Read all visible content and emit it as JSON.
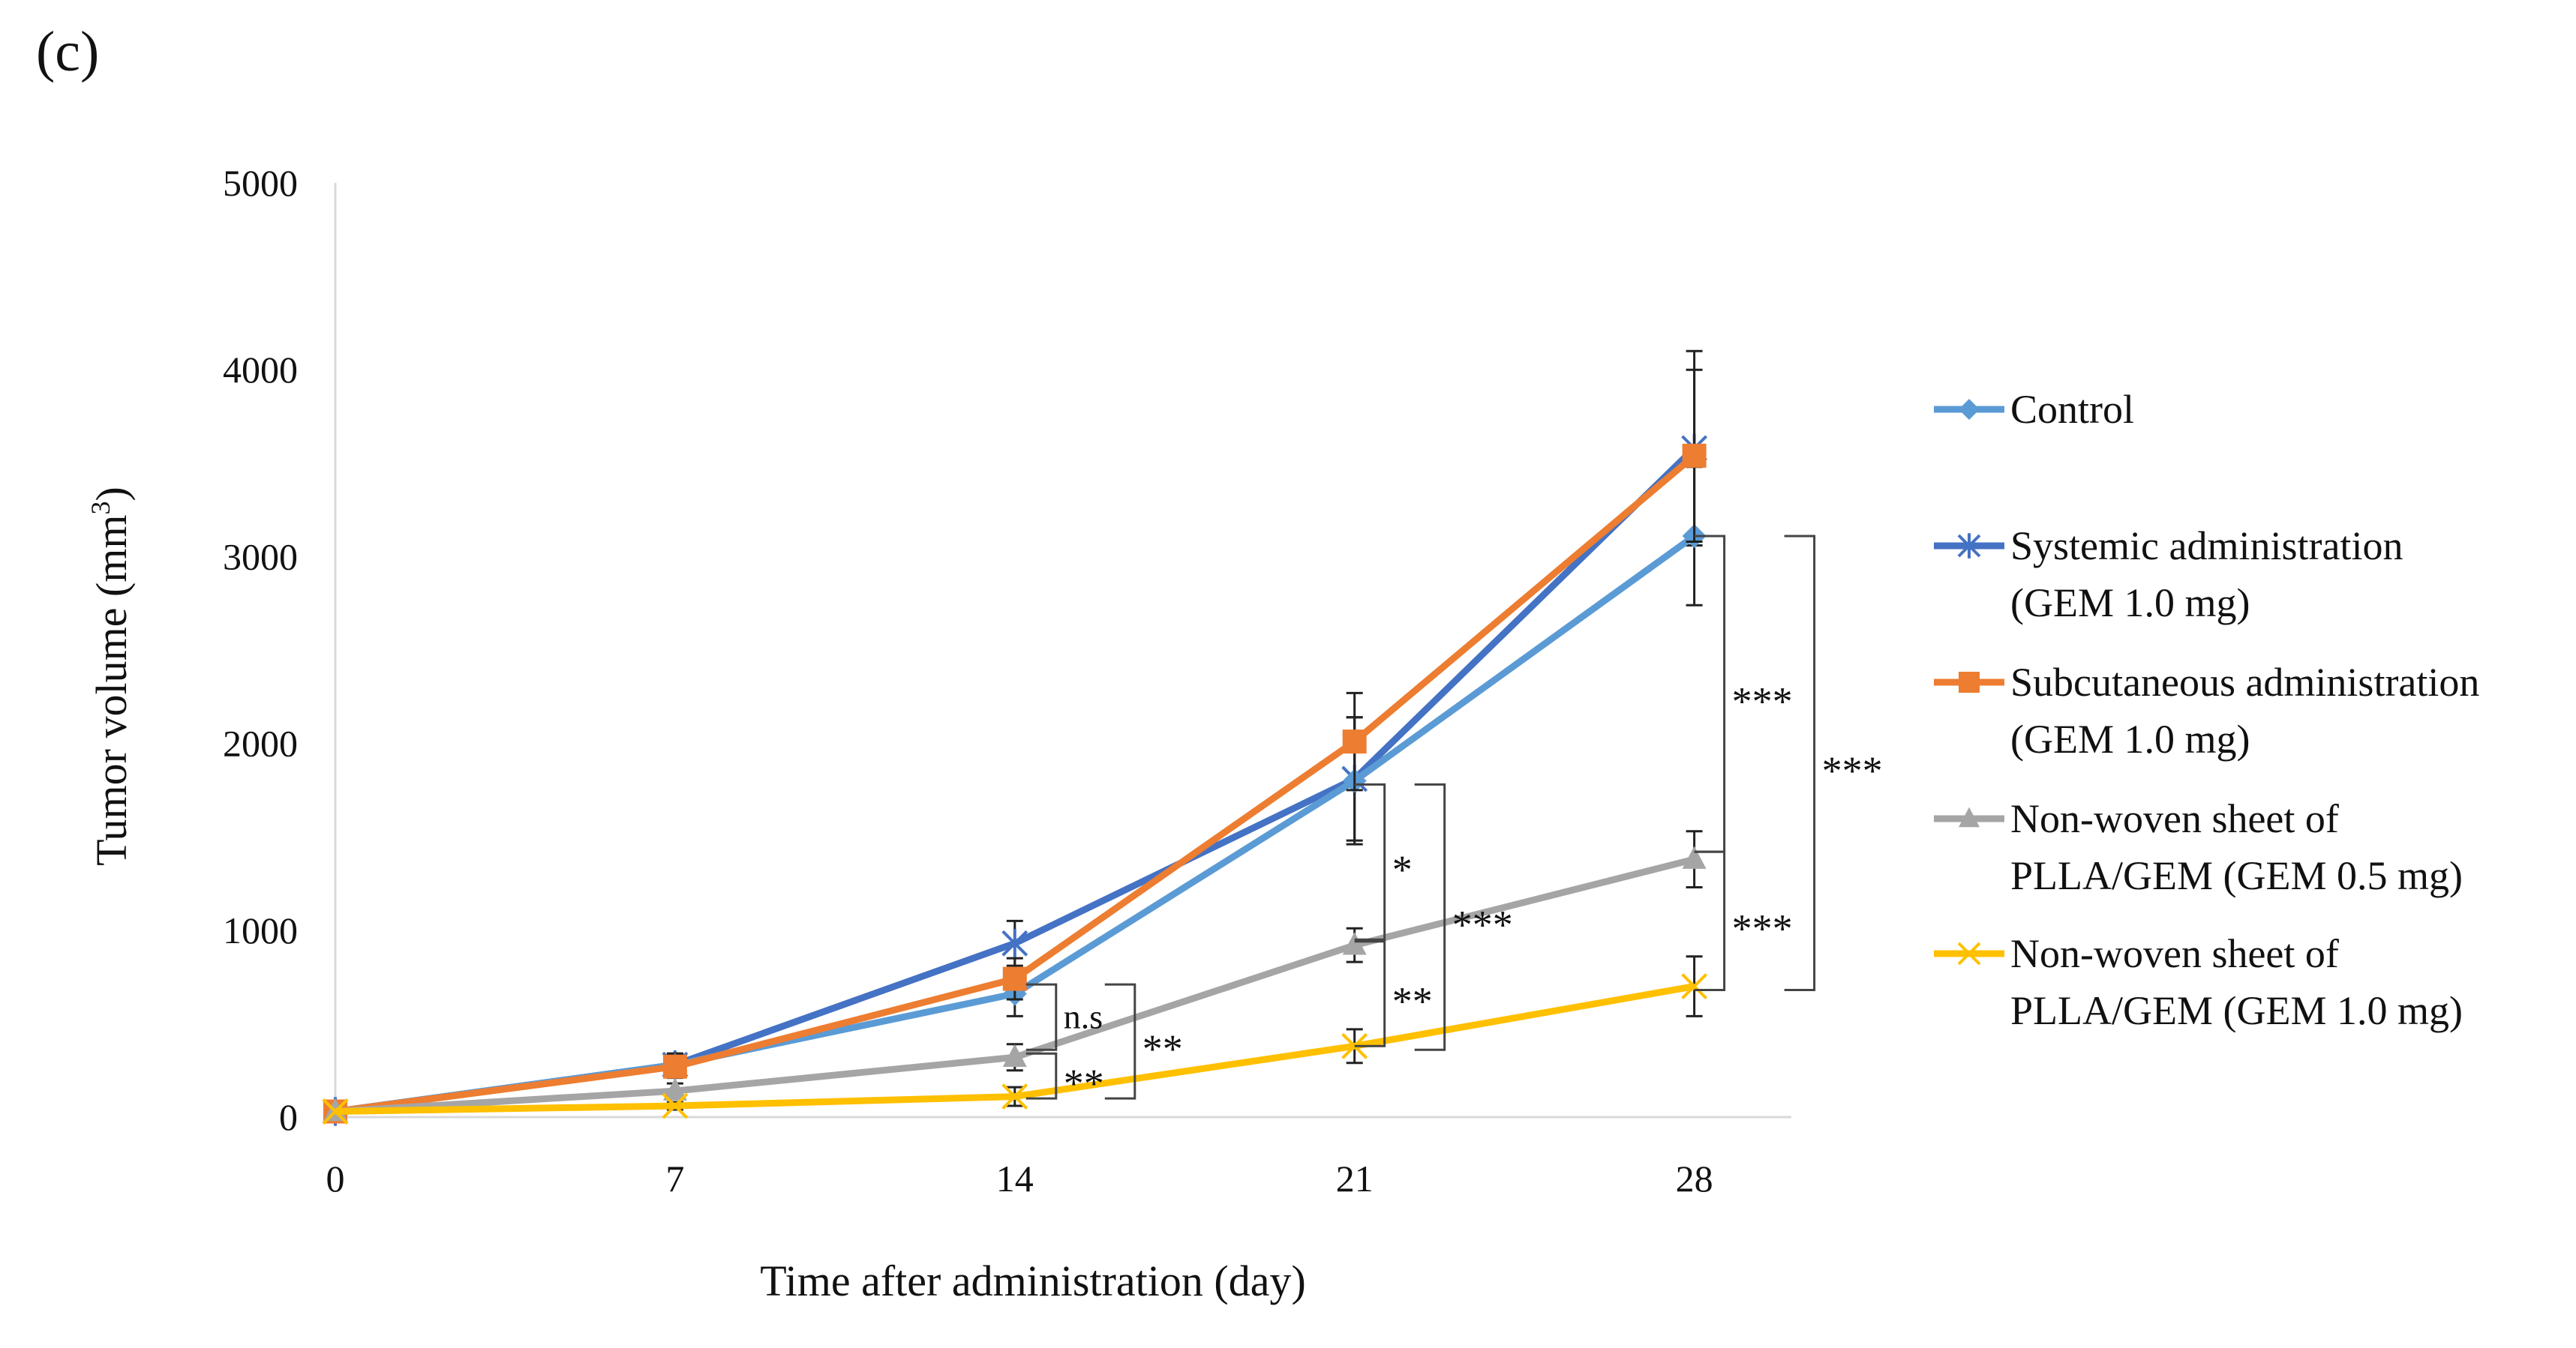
{
  "chart_data": {
    "type": "line",
    "panel_label": "(c)",
    "title": "",
    "xlabel": "Time after administration (day)",
    "ylabel_main": "Tumor volume (mm",
    "ylabel_sup": "3",
    "ylabel_close": ")",
    "x": [
      0,
      7,
      14,
      21,
      28
    ],
    "x_tick_labels": [
      "0",
      "7",
      "14",
      "21",
      "28"
    ],
    "y_ticks": [
      0,
      1000,
      2000,
      3000,
      4000,
      5000
    ],
    "y_tick_labels": [
      "0",
      "1000",
      "2000",
      "3000",
      "4000",
      "5000"
    ],
    "xlim": [
      0,
      30
    ],
    "ylim": [
      0,
      5000
    ],
    "legend_position": "right",
    "series": [
      {
        "name_lines": [
          "Systemic administration",
          "(GEM 1.0 mg)"
        ],
        "color": "#4472C4",
        "marker": "asterisk",
        "values": [
          30,
          280,
          930,
          1810,
          3580
        ],
        "errors": [
          0,
          60,
          120,
          330,
          520
        ]
      },
      {
        "name_lines": [
          "Control"
        ],
        "color": "#5B9BD5",
        "marker": "diamond",
        "values": [
          30,
          280,
          660,
          1800,
          3110
        ],
        "errors": [
          0,
          60,
          120,
          340,
          370
        ]
      },
      {
        "name_lines": [
          "Subcutaneous administration",
          "(GEM 1.0 mg)"
        ],
        "color": "#ED7D31",
        "marker": "square",
        "values": [
          30,
          270,
          740,
          2010,
          3540
        ],
        "errors": [
          0,
          60,
          110,
          260,
          460
        ]
      },
      {
        "name_lines": [
          "Non-woven sheet of",
          "PLLA/GEM (GEM 0.5 mg)"
        ],
        "color": "#A5A5A5",
        "marker": "triangle",
        "values": [
          30,
          140,
          320,
          920,
          1380
        ],
        "errors": [
          0,
          40,
          70,
          90,
          150
        ]
      },
      {
        "name_lines": [
          "Non-woven sheet of",
          "PLLA/GEM (GEM 1.0 mg)"
        ],
        "color": "#FFC000",
        "marker": "x",
        "values": [
          30,
          60,
          110,
          380,
          700
        ],
        "errors": [
          0,
          20,
          50,
          90,
          160
        ]
      }
    ],
    "legend_order": [
      1,
      0,
      2,
      3,
      4
    ],
    "annotations": [
      {
        "label": "n.s",
        "day": 14,
        "y_top": 710,
        "y_bottom": 360,
        "offset": "near"
      },
      {
        "label": "**",
        "day": 14,
        "y_top": 340,
        "y_bottom": 100,
        "offset": "near"
      },
      {
        "label": "**",
        "day": 14,
        "y_top": 710,
        "y_bottom": 100,
        "offset": "far"
      },
      {
        "label": "*",
        "day": 21,
        "y_top": 1780,
        "y_bottom": 950,
        "offset": "near"
      },
      {
        "label": "**",
        "day": 21,
        "y_top": 940,
        "y_bottom": 380,
        "offset": "near"
      },
      {
        "label": "***",
        "day": 21,
        "y_top": 1780,
        "y_bottom": 360,
        "offset": "far"
      },
      {
        "label": "***",
        "day": 28,
        "y_top": 3110,
        "y_bottom": 1420,
        "offset": "near"
      },
      {
        "label": "***",
        "day": 28,
        "y_top": 1420,
        "y_bottom": 680,
        "offset": "near"
      },
      {
        "label": "***",
        "day": 28,
        "y_top": 3110,
        "y_bottom": 680,
        "offset": "far"
      }
    ]
  }
}
